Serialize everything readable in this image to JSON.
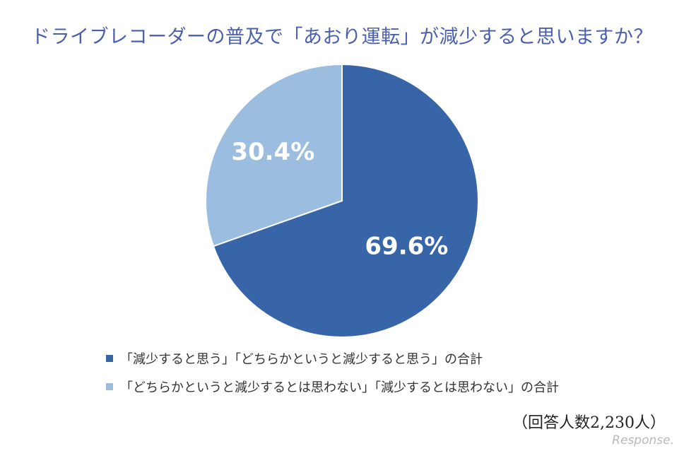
{
  "chart_data": {
    "type": "pie",
    "title": "ドライブレコーダーの普及で「あおり運転」が減少すると思いますか？",
    "slices": [
      {
        "label": "「減少すると思う」「どちらかというと減少すると思う」の合計",
        "value": 69.6,
        "value_label": "69.6%",
        "color": "#3865a8"
      },
      {
        "label": "「どちらかというと減少するとは思わない」「減少するとは思わない」の合計",
        "value": 30.4,
        "value_label": "30.4%",
        "color": "#9bbde0"
      }
    ],
    "legend_position": "bottom-left",
    "note": "（回答人数2,230人）"
  },
  "watermark": "Response."
}
